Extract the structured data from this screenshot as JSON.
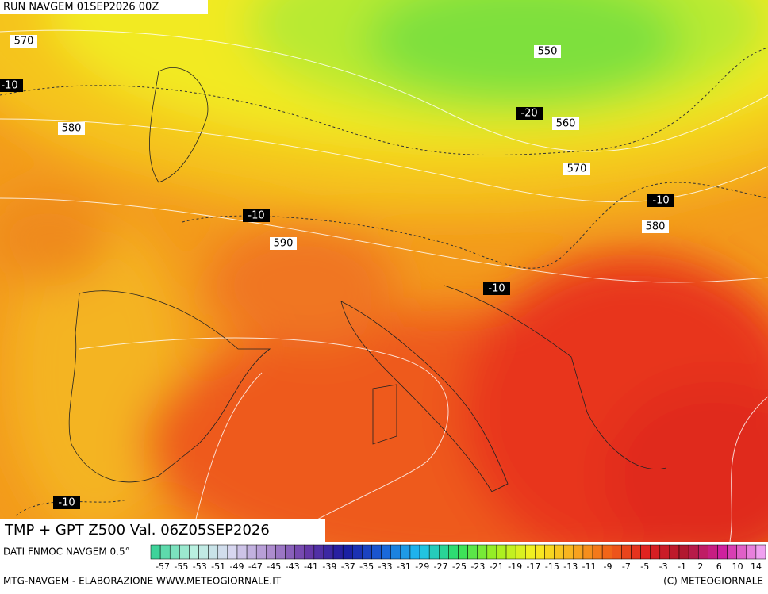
{
  "header": {
    "run": "RUN NAVGEM 01SEP2026 00Z"
  },
  "map": {
    "labels": [
      "570",
      "-10",
      "580",
      "550",
      "-20",
      "560",
      "570",
      "-10",
      "580",
      "-10",
      "590",
      "-10",
      "-10"
    ]
  },
  "footer": {
    "title": "TMP + GPT Z500 Val. 06Z05SEP2026",
    "source": "DATI FNMOC NAVGEM 0.5°",
    "scale": {
      "labels": [
        -57,
        -55,
        -53,
        -51,
        -49,
        -47,
        -45,
        -43,
        -41,
        -39,
        -37,
        -35,
        -33,
        -31,
        -29,
        -27,
        -25,
        -23,
        -21,
        -19,
        -17,
        -15,
        -13,
        -11,
        -9,
        -7,
        -5,
        -3,
        -1,
        2,
        6,
        10,
        14
      ]
    },
    "credit": "MTG-NAVGEM - ELABORAZIONE WWW.METEOGIORNALE.IT",
    "copyright": "(C) METEOGIORNALE"
  }
}
